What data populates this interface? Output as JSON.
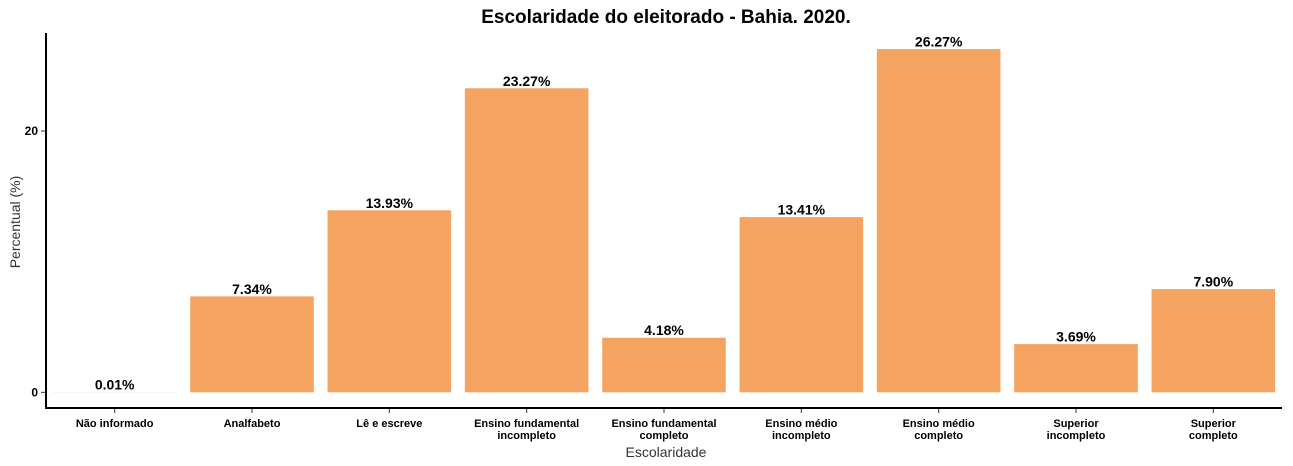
{
  "chart_data": {
    "type": "bar",
    "title": "Escolaridade do eleitorado - Bahia. 2020.",
    "xlabel": "Escolaridade",
    "ylabel": "Percentual (%)",
    "categories": [
      [
        "Não informado"
      ],
      [
        "Analfabeto"
      ],
      [
        "Lê e escreve"
      ],
      [
        "Ensino fundamental",
        "incompleto"
      ],
      [
        "Ensino fundamental",
        "completo"
      ],
      [
        "Ensino médio",
        "incompleto"
      ],
      [
        "Ensino médio",
        "completo"
      ],
      [
        "Superior",
        "incompleto"
      ],
      [
        "Superior",
        "completo"
      ]
    ],
    "values": [
      0.01,
      7.34,
      13.93,
      23.27,
      4.18,
      13.41,
      26.27,
      3.69,
      7.9
    ],
    "data_labels": [
      "0.01%",
      "7.34%",
      "13.93%",
      "23.27%",
      "4.18%",
      "13.41%",
      "26.27%",
      "3.69%",
      "7.90%"
    ],
    "y_ticks": [
      0,
      20
    ],
    "ylim": [
      -1.2,
      27.5
    ],
    "grid": false,
    "legend": "none",
    "colors": {
      "bar": "#F4A460",
      "axis": "#000000",
      "text": "#000000"
    }
  }
}
